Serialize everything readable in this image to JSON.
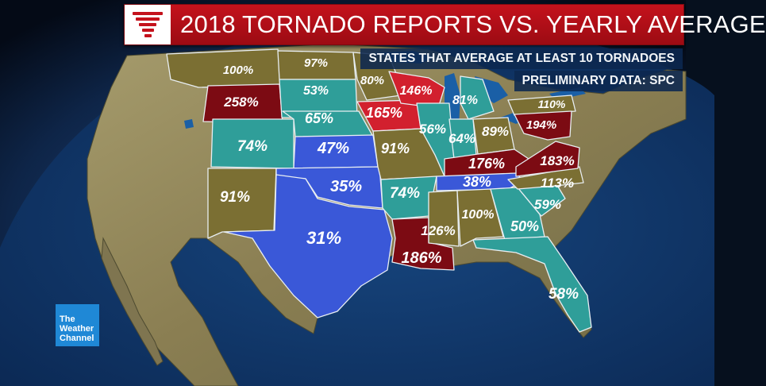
{
  "title": "2018 TORNADO REPORTS VS. YEARLY AVERAGE",
  "subtitles": [
    "STATES THAT AVERAGE AT LEAST 10 TORNADOES",
    "PRELIMINARY DATA: SPC"
  ],
  "logo": {
    "line1": "The",
    "line2": "Weather",
    "line3": "Channel"
  },
  "colors": {
    "above_high": "#7c0b13",
    "above": "#d2202e",
    "near": "#7b6f33",
    "below": "#2f9e99",
    "well_below": "#3a58d8",
    "ocean": "#0c2a5c",
    "land": "#8f8a62"
  },
  "states": [
    {
      "id": "montana",
      "label": "100%",
      "value": 100,
      "category": "near"
    },
    {
      "id": "wyoming",
      "label": "258%",
      "value": 258,
      "category": "above_high"
    },
    {
      "id": "colorado",
      "label": "74%",
      "value": 74,
      "category": "below"
    },
    {
      "id": "new-mexico",
      "label": "91%",
      "value": 91,
      "category": "near"
    },
    {
      "id": "north-dakota",
      "label": "97%",
      "value": 97,
      "category": "near"
    },
    {
      "id": "south-dakota",
      "label": "53%",
      "value": 53,
      "category": "below"
    },
    {
      "id": "nebraska",
      "label": "65%",
      "value": 65,
      "category": "below"
    },
    {
      "id": "kansas",
      "label": "47%",
      "value": 47,
      "category": "well_below"
    },
    {
      "id": "oklahoma",
      "label": "35%",
      "value": 35,
      "category": "well_below"
    },
    {
      "id": "texas",
      "label": "31%",
      "value": 31,
      "category": "well_below"
    },
    {
      "id": "minnesota",
      "label": "80%",
      "value": 80,
      "category": "near"
    },
    {
      "id": "iowa",
      "label": "165%",
      "value": 165,
      "category": "above"
    },
    {
      "id": "missouri",
      "label": "91%",
      "value": 91,
      "category": "near"
    },
    {
      "id": "arkansas",
      "label": "74%",
      "value": 74,
      "category": "below"
    },
    {
      "id": "louisiana",
      "label": "186%",
      "value": 186,
      "category": "above_high"
    },
    {
      "id": "wisconsin",
      "label": "146%",
      "value": 146,
      "category": "above"
    },
    {
      "id": "illinois",
      "label": "56%",
      "value": 56,
      "category": "below"
    },
    {
      "id": "michigan",
      "label": "81%",
      "value": 81,
      "category": "below"
    },
    {
      "id": "indiana",
      "label": "64%",
      "value": 64,
      "category": "below"
    },
    {
      "id": "ohio",
      "label": "89%",
      "value": 89,
      "category": "near"
    },
    {
      "id": "kentucky",
      "label": "176%",
      "value": 176,
      "category": "above_high"
    },
    {
      "id": "tennessee",
      "label": "38%",
      "value": 38,
      "category": "well_below"
    },
    {
      "id": "mississippi",
      "label": "126%",
      "value": 126,
      "category": "near"
    },
    {
      "id": "alabama",
      "label": "100%",
      "value": 100,
      "category": "near"
    },
    {
      "id": "georgia",
      "label": "50%",
      "value": 50,
      "category": "below"
    },
    {
      "id": "florida",
      "label": "58%",
      "value": 58,
      "category": "below"
    },
    {
      "id": "south-carolina",
      "label": "59%",
      "value": 59,
      "category": "below"
    },
    {
      "id": "north-carolina",
      "label": "113%",
      "value": 113,
      "category": "near"
    },
    {
      "id": "virginia",
      "label": "183%",
      "value": 183,
      "category": "above_high"
    },
    {
      "id": "pennsylvania",
      "label": "110%",
      "value": 110,
      "category": "near"
    },
    {
      "id": "maryland",
      "label": "194%",
      "value": 194,
      "category": "above_high"
    }
  ]
}
